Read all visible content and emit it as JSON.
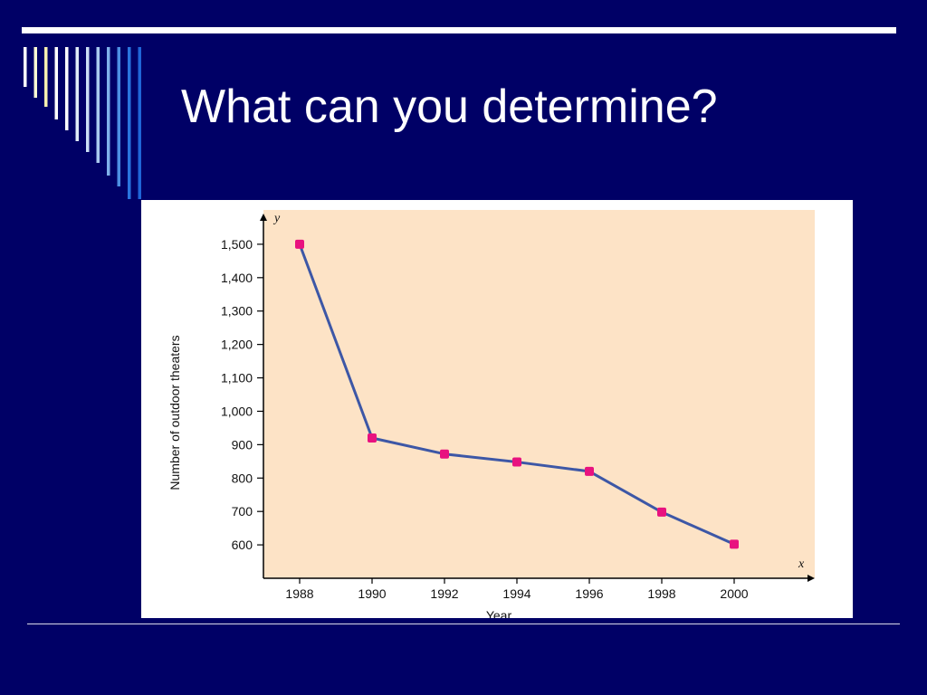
{
  "slide": {
    "title": "What can you determine?"
  },
  "colors": {
    "background": "#000066",
    "plot_area": "#FDE3C6",
    "line": "#3D57A6",
    "marker": "#E8127F",
    "decor_stripes": [
      "#ffffff",
      "#fdfbd4",
      "#f7f0b0",
      "#ffffff",
      "#ffffff",
      "#e0ecf8",
      "#cbdff5",
      "#a9c9ef",
      "#7fb0ea",
      "#4d8fe3",
      "#2a74de",
      "#1f66d8"
    ]
  },
  "chart_data": {
    "type": "line",
    "x": [
      1988,
      1990,
      1992,
      1994,
      1996,
      1998,
      2000
    ],
    "series": [
      {
        "values": [
          1500,
          920,
          872,
          848,
          820,
          698,
          602
        ]
      }
    ],
    "xlabel": "Year",
    "ylabel": "Number of outdoor theaters",
    "x_axis_letter": "x",
    "y_axis_letter": "y",
    "x_tick_labels": [
      "1988",
      "1990",
      "1992",
      "1994",
      "1996",
      "1998",
      "2000"
    ],
    "y_ticks": [
      600,
      700,
      800,
      900,
      1000,
      1100,
      1200,
      1300,
      1400,
      1500
    ],
    "y_tick_labels": [
      "600",
      "700",
      "800",
      "900",
      "1,000",
      "1,100",
      "1,200",
      "1,300",
      "1,400",
      "1,500"
    ],
    "xlim": [
      1987,
      2002
    ],
    "ylim": [
      500,
      1600
    ],
    "grid": false,
    "legend": "none"
  }
}
